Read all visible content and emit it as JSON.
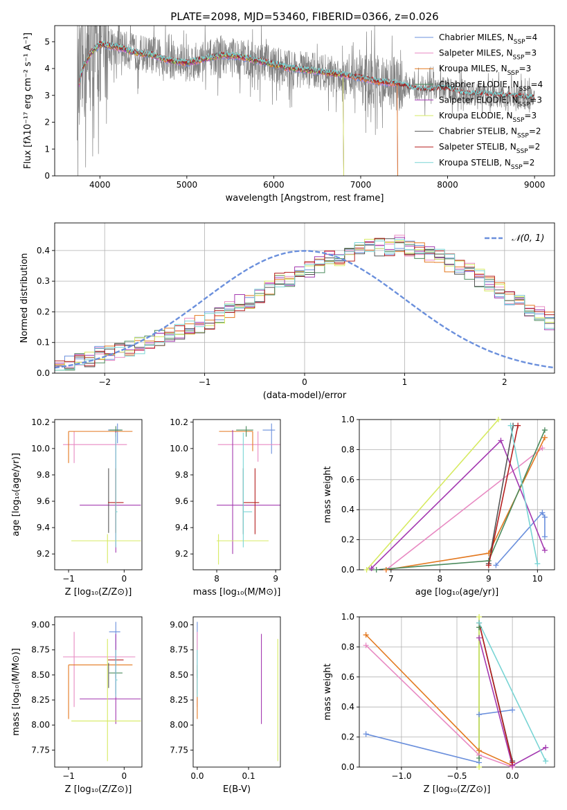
{
  "figure": {
    "title": "PLATE=2098, MJD=53460, FIBERID=0366, z=0.026"
  },
  "colors": {
    "chabrier_miles": "#6a8fdc",
    "salpeter_miles": "#e889c2",
    "kroupa_miles": "#e3781f",
    "chabrier_elodie": "#4a8a5c",
    "salpeter_elodie": "#a338b0",
    "kroupa_elodie": "#d6ea60",
    "chabrier_stelib": "#555555",
    "salpeter_stelib": "#b51e1e",
    "kroupa_stelib": "#78d4d4",
    "data": "#808080",
    "grid": "#b0b0b0",
    "normal_curve": "#6a8fdc"
  },
  "chart_data": [
    {
      "id": "spectrum",
      "type": "line",
      "title": "PLATE=2098, MJD=53460, FIBERID=0366, z=0.026",
      "xlabel": "wavelength [Angstrom, rest frame]",
      "ylabel": "Flux [fλ10⁻¹⁷ erg cm⁻² s⁻¹ A⁻¹]",
      "xlim": [
        3480,
        9230
      ],
      "ylim": [
        0,
        5.6
      ],
      "xticks": [
        4000,
        5000,
        6000,
        7000,
        8000,
        9000
      ],
      "yticks": [
        0,
        1,
        2,
        3,
        4,
        5
      ],
      "grid": false,
      "legend_position": "top-right",
      "legend": [
        "Chabrier MILES, N_SSP=4",
        "Salpeter MILES, N_SSP=3",
        "Kroupa MILES, N_SSP=3",
        "Chabrier ELODIE, N_SSP=4",
        "Salpeter ELODIE, N_SSP=3",
        "Kroupa ELODIE, N_SSP=3",
        "Chabrier STELIB, N_SSP=2",
        "Salpeter STELIB, N_SSP=2",
        "Kroupa STELIB, N_SSP=2"
      ],
      "continuum": {
        "x": [
          3740,
          3800,
          3900,
          4000,
          4100,
          4200,
          4400,
          4600,
          4800,
          5000,
          5200,
          5400,
          5600,
          5800,
          6000,
          6200,
          6400,
          6600,
          6800,
          7000,
          7200,
          7400,
          7600,
          7800,
          8000,
          8200,
          8400,
          8600,
          8800,
          9000
        ],
        "y": [
          3.1,
          4.0,
          4.6,
          4.9,
          4.85,
          4.8,
          4.6,
          4.5,
          4.3,
          4.2,
          4.35,
          4.5,
          4.45,
          4.3,
          4.15,
          4.0,
          3.95,
          3.85,
          3.75,
          3.65,
          3.5,
          3.45,
          3.25,
          3.2,
          3.25,
          3.05,
          3.05,
          3.0,
          2.95,
          2.9
        ]
      }
    },
    {
      "id": "residuals",
      "type": "histogram",
      "xlabel": "(data-model)/error",
      "ylabel": "Normed distribution",
      "xlim": [
        -2.5,
        2.5
      ],
      "ylim": [
        0,
        0.49
      ],
      "xticks": [
        -2,
        -1,
        0,
        1,
        2
      ],
      "yticks": [
        0.0,
        0.1,
        0.2,
        0.3,
        0.4
      ],
      "grid": true,
      "legend_position": "top-right",
      "legend": [
        "𝒩(0, 1)"
      ],
      "bin_width": 0.1,
      "base": [
        0.02,
        0.03,
        0.04,
        0.05,
        0.06,
        0.06,
        0.07,
        0.08,
        0.09,
        0.1,
        0.11,
        0.12,
        0.13,
        0.15,
        0.16,
        0.17,
        0.19,
        0.21,
        0.23,
        0.24,
        0.26,
        0.28,
        0.3,
        0.31,
        0.33,
        0.34,
        0.35,
        0.37,
        0.38,
        0.39,
        0.4,
        0.41,
        0.41,
        0.41,
        0.42,
        0.41,
        0.4,
        0.39,
        0.38,
        0.36,
        0.35,
        0.33,
        0.31,
        0.29,
        0.27,
        0.25,
        0.23,
        0.21,
        0.19,
        0.17
      ]
    },
    {
      "id": "age_vs_Z",
      "type": "errorbar",
      "xlabel": "Z [log₁₀(Z/Z⊙)]",
      "ylabel": "age  [log₁₀(age/yr)]",
      "xlim": [
        -1.25,
        0.32
      ],
      "ylim": [
        9.08,
        10.22
      ],
      "xticks": [
        -1,
        0
      ],
      "yticks": [
        9.2,
        9.4,
        9.6,
        9.8,
        10.0,
        10.2
      ],
      "points": [
        {
          "model": "chabrier_miles",
          "x": -0.12,
          "y": 10.14,
          "xerr": [
            0.17,
            0.07
          ],
          "yerr": [
            0.1,
            0.05
          ]
        },
        {
          "model": "salpeter_miles",
          "x": -0.9,
          "y": 10.03,
          "xerr": [
            0.2,
            0.95
          ],
          "yerr": [
            0.14,
            0.1
          ]
        },
        {
          "model": "kroupa_miles",
          "x": -1.0,
          "y": 10.13,
          "xerr": [
            0.0,
            1.15
          ],
          "yerr": [
            0.24,
            0.0
          ]
        },
        {
          "model": "chabrier_elodie",
          "x": -0.15,
          "y": 10.14,
          "xerr": [
            0.12,
            0.12
          ],
          "yerr": [
            0.05,
            0.03
          ]
        },
        {
          "model": "salpeter_elodie",
          "x": -0.15,
          "y": 9.57,
          "xerr": [
            0.65,
            0.45
          ],
          "yerr": [
            0.36,
            0.56
          ]
        },
        {
          "model": "kroupa_elodie",
          "x": -0.3,
          "y": 9.3,
          "xerr": [
            0.65,
            0.6
          ],
          "yerr": [
            0.17,
            0.05
          ]
        },
        {
          "model": "chabrier_stelib",
          "x": -0.28,
          "y": 9.59,
          "xerr": [
            0.0,
            0.0
          ],
          "yerr": [
            0.23,
            0.26
          ]
        },
        {
          "model": "salpeter_stelib",
          "x": -0.15,
          "y": 9.59,
          "xerr": [
            0.14,
            0.14
          ],
          "yerr": [
            0.23,
            0.26
          ]
        },
        {
          "model": "kroupa_stelib",
          "x": -0.15,
          "y": 9.52,
          "xerr": [
            0.0,
            0.03
          ],
          "yerr": [
            0.27,
            0.6
          ]
        }
      ]
    },
    {
      "id": "age_vs_mass",
      "type": "errorbar",
      "xlabel": "mass [log₁₀(M/M⊙)]",
      "ylabel": "",
      "xlim": [
        7.6,
        9.08
      ],
      "ylim": [
        9.08,
        10.22
      ],
      "xticks": [
        8,
        9
      ],
      "yticks": [
        9.2,
        9.4,
        9.6,
        9.8,
        10.0,
        10.2
      ],
      "points": [
        {
          "model": "chabrier_miles",
          "x": 8.93,
          "y": 10.14,
          "xerr": [
            0.15,
            0.06
          ],
          "yerr": [
            0.18,
            0.05
          ]
        },
        {
          "model": "salpeter_miles",
          "x": 8.7,
          "y": 10.03,
          "xerr": [
            0.68,
            0.5
          ],
          "yerr": [
            0.13,
            0.1
          ]
        },
        {
          "model": "kroupa_miles",
          "x": 8.61,
          "y": 10.13,
          "xerr": [
            0.57,
            0.0
          ],
          "yerr": [
            0.15,
            0.0
          ]
        },
        {
          "model": "chabrier_elodie",
          "x": 8.5,
          "y": 10.14,
          "xerr": [
            0.17,
            0.12
          ],
          "yerr": [
            0.05,
            0.03
          ]
        },
        {
          "model": "salpeter_elodie",
          "x": 8.27,
          "y": 9.57,
          "xerr": [
            0.27,
            0.9
          ],
          "yerr": [
            0.37,
            0.57
          ]
        },
        {
          "model": "kroupa_elodie",
          "x": 8.03,
          "y": 9.3,
          "xerr": [
            0.03,
            0.85
          ],
          "yerr": [
            0.18,
            0.05
          ]
        },
        {
          "model": "chabrier_stelib",
          "x": 8.45,
          "y": 9.59,
          "xerr": [
            0.0,
            0.0
          ],
          "yerr": [
            0.24,
            0.26
          ]
        },
        {
          "model": "salpeter_stelib",
          "x": 8.65,
          "y": 9.59,
          "xerr": [
            0.2,
            0.07
          ],
          "yerr": [
            0.24,
            0.26
          ]
        },
        {
          "model": "kroupa_stelib",
          "x": 8.45,
          "y": 9.52,
          "xerr": [
            0.0,
            0.15
          ],
          "yerr": [
            0.27,
            0.6
          ]
        }
      ]
    },
    {
      "id": "weight_vs_age",
      "type": "line",
      "xlabel": "age  [log₁₀(age/yr)]",
      "ylabel": "mass weight",
      "xlim": [
        6.35,
        10.35
      ],
      "ylim": [
        0,
        1.0
      ],
      "xticks": [
        7,
        8,
        9,
        10
      ],
      "yticks": [
        0.0,
        0.2,
        0.4,
        0.6,
        0.8,
        1.0
      ],
      "grid": true,
      "series": [
        {
          "model": "chabrier_miles",
          "x": [
            9.15,
            10.1,
            10.15,
            10.15
          ],
          "y": [
            0.03,
            0.38,
            0.35,
            0.22
          ]
        },
        {
          "model": "salpeter_miles",
          "x": [
            6.9,
            10.1
          ],
          "y": [
            0.0,
            0.81
          ]
        },
        {
          "model": "kroupa_miles",
          "x": [
            6.9,
            9.0,
            10.15
          ],
          "y": [
            0.0,
            0.11,
            0.88
          ]
        },
        {
          "model": "chabrier_elodie",
          "x": [
            6.7,
            9.0,
            10.15
          ],
          "y": [
            0.0,
            0.06,
            0.93
          ]
        },
        {
          "model": "salpeter_elodie",
          "x": [
            6.6,
            9.25,
            10.15
          ],
          "y": [
            0.01,
            0.86,
            0.13
          ]
        },
        {
          "model": "kroupa_elodie",
          "x": [
            6.5,
            9.2
          ],
          "y": [
            0.0,
            1.0
          ]
        },
        {
          "model": "chabrier_stelib",
          "x": [
            9.0,
            9.5
          ],
          "y": [
            0.04,
            0.96
          ]
        },
        {
          "model": "salpeter_stelib",
          "x": [
            9.0,
            9.6
          ],
          "y": [
            0.03,
            0.96
          ]
        },
        {
          "model": "kroupa_stelib",
          "x": [
            9.45,
            10.0
          ],
          "y": [
            0.96,
            0.04
          ]
        }
      ]
    },
    {
      "id": "mass_vs_Z",
      "type": "errorbar",
      "xlabel": "Z [log₁₀(Z/Z⊙)]",
      "ylabel": "mass [log₁₀(M/M⊙)]",
      "xlim": [
        -1.25,
        0.32
      ],
      "ylim": [
        7.58,
        9.08
      ],
      "xticks": [
        -1,
        0
      ],
      "yticks": [
        7.75,
        8.0,
        8.25,
        8.5,
        8.75,
        9.0
      ],
      "points": [
        {
          "model": "chabrier_miles",
          "x": -0.15,
          "y": 8.93,
          "xerr": [
            0.12,
            0.08
          ],
          "yerr": [
            0.62,
            0.1
          ]
        },
        {
          "model": "salpeter_miles",
          "x": -0.9,
          "y": 8.68,
          "xerr": [
            0.2,
            1.1
          ],
          "yerr": [
            0.5,
            0.25
          ]
        },
        {
          "model": "kroupa_miles",
          "x": -1.0,
          "y": 8.6,
          "xerr": [
            0.0,
            1.15
          ],
          "yerr": [
            0.54,
            0.0
          ]
        },
        {
          "model": "chabrier_elodie",
          "x": -0.15,
          "y": 8.52,
          "xerr": [
            0.12,
            0.12
          ],
          "yerr": [
            0.05,
            0.03
          ]
        },
        {
          "model": "salpeter_elodie",
          "x": -0.15,
          "y": 8.26,
          "xerr": [
            0.65,
            0.45
          ],
          "yerr": [
            0.25,
            0.65
          ]
        },
        {
          "model": "kroupa_elodie",
          "x": -0.3,
          "y": 8.04,
          "xerr": [
            0.65,
            0.6
          ],
          "yerr": [
            0.4,
            0.82
          ]
        },
        {
          "model": "chabrier_stelib",
          "x": -0.28,
          "y": 8.52,
          "xerr": [
            0.0,
            0.0
          ],
          "yerr": [
            0.15,
            0.1
          ]
        },
        {
          "model": "salpeter_stelib",
          "x": -0.15,
          "y": 8.65,
          "xerr": [
            0.14,
            0.14
          ],
          "yerr": [
            0.0,
            0.0
          ]
        },
        {
          "model": "kroupa_stelib",
          "x": -0.15,
          "y": 8.45,
          "xerr": [
            0.0,
            0.03
          ],
          "yerr": [
            0.17,
            0.3
          ]
        }
      ]
    },
    {
      "id": "mass_vs_ebv",
      "type": "errorbar",
      "xlabel": "E(B-V)",
      "ylabel": "",
      "xlim": [
        -0.008,
        0.162
      ],
      "ylim": [
        7.58,
        9.08
      ],
      "xticks": [
        0.0,
        0.1
      ],
      "yticks": [
        7.75,
        8.0,
        8.25,
        8.5,
        8.75,
        9.0
      ],
      "points": [
        {
          "model": "chabrier_miles",
          "x": 0.0,
          "y": 8.93,
          "xerr": [
            0,
            0
          ],
          "yerr": [
            0.62,
            0.1
          ]
        },
        {
          "model": "salpeter_miles",
          "x": 0.0,
          "y": 8.68,
          "xerr": [
            0,
            0
          ],
          "yerr": [
            0.5,
            0.25
          ]
        },
        {
          "model": "kroupa_miles",
          "x": 0.0,
          "y": 8.6,
          "xerr": [
            0,
            0
          ],
          "yerr": [
            0.54,
            0.0
          ]
        },
        {
          "model": "chabrier_elodie",
          "x": 0.0,
          "y": 8.52,
          "xerr": [
            0,
            0
          ],
          "yerr": [
            0.05,
            0.03
          ]
        },
        {
          "model": "salpeter_elodie",
          "x": 0.125,
          "y": 8.26,
          "xerr": [
            0,
            0
          ],
          "yerr": [
            0.25,
            0.65
          ]
        },
        {
          "model": "kroupa_elodie",
          "x": 0.157,
          "y": 8.04,
          "xerr": [
            0,
            0
          ],
          "yerr": [
            0.4,
            0.82
          ]
        },
        {
          "model": "kroupa_stelib",
          "x": 0.0,
          "y": 8.45,
          "xerr": [
            0,
            0
          ],
          "yerr": [
            0.17,
            0.3
          ]
        }
      ]
    },
    {
      "id": "weight_vs_Z",
      "type": "line",
      "xlabel": "Z [log₁₀(Z/Z⊙)]",
      "ylabel": "mass weight",
      "xlim": [
        -1.38,
        0.38
      ],
      "ylim": [
        0,
        1.0
      ],
      "xticks": [
        -1.0,
        -0.5,
        0.0
      ],
      "yticks": [
        0.0,
        0.2,
        0.4,
        0.6,
        0.8,
        1.0
      ],
      "grid": true,
      "series": [
        {
          "model": "chabrier_miles",
          "x": [
            -1.32,
            -0.3,
            -0.3,
            0.0
          ],
          "y": [
            0.22,
            0.03,
            0.35,
            0.38
          ]
        },
        {
          "model": "salpeter_miles",
          "x": [
            -1.32,
            -0.3,
            0.0
          ],
          "y": [
            0.81,
            0.08,
            0.0
          ]
        },
        {
          "model": "kroupa_miles",
          "x": [
            -1.32,
            -0.3,
            0.0
          ],
          "y": [
            0.88,
            0.11,
            0.01
          ]
        },
        {
          "model": "chabrier_elodie",
          "x": [
            -0.3,
            -0.3
          ],
          "y": [
            0.06,
            0.93
          ]
        },
        {
          "model": "salpeter_elodie",
          "x": [
            -0.3,
            0.0,
            0.3
          ],
          "y": [
            0.86,
            0.01,
            0.13
          ]
        },
        {
          "model": "kroupa_elodie",
          "x": [
            -0.3,
            -0.3
          ],
          "y": [
            0.0,
            1.0
          ]
        },
        {
          "model": "chabrier_stelib",
          "x": [
            -0.3,
            0.0
          ],
          "y": [
            0.96,
            0.04
          ]
        },
        {
          "model": "salpeter_stelib",
          "x": [
            -0.3,
            0.0
          ],
          "y": [
            0.96,
            0.03
          ]
        },
        {
          "model": "kroupa_stelib",
          "x": [
            -0.3,
            0.3
          ],
          "y": [
            0.96,
            0.04
          ]
        }
      ]
    }
  ]
}
